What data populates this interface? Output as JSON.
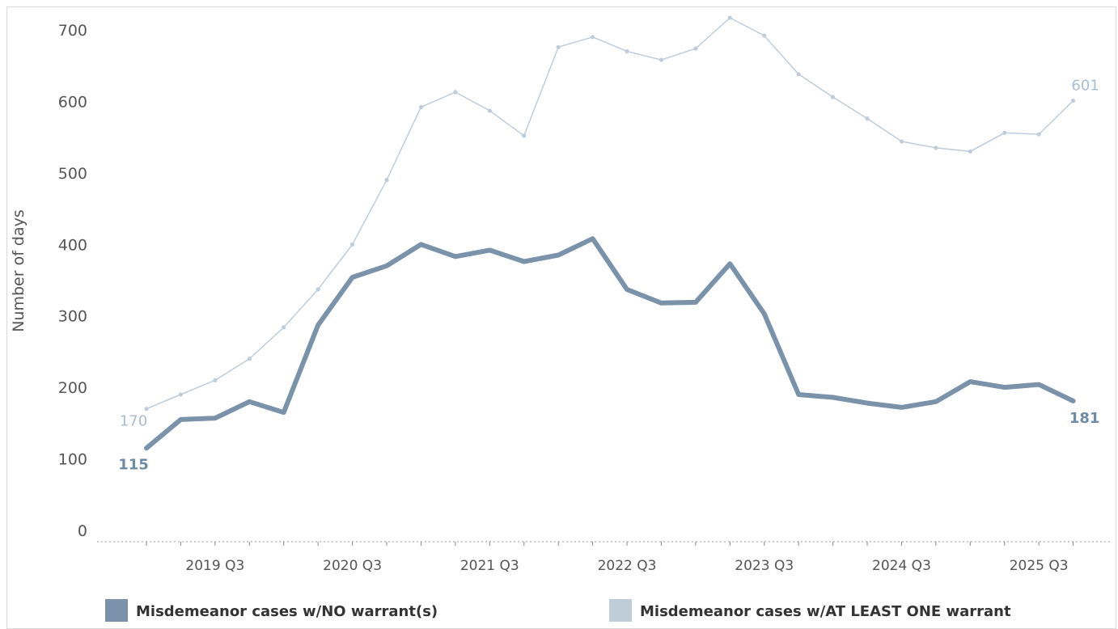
{
  "chart_data": {
    "type": "line",
    "ylabel": "Number of days",
    "ylim": [
      0,
      700
    ],
    "yticks": [
      "0",
      "100",
      "200",
      "300",
      "400",
      "500",
      "600",
      "700"
    ],
    "xtick_labels": [
      "2019 Q3",
      "2020 Q3",
      "2021 Q3",
      "2022 Q3",
      "2023 Q3",
      "2024 Q3",
      "2025 Q3"
    ],
    "x": [
      "2019 Q1",
      "2019 Q2",
      "2019 Q3",
      "2019 Q4",
      "2020 Q1",
      "2020 Q2",
      "2020 Q3",
      "2020 Q4",
      "2021 Q1",
      "2021 Q2",
      "2021 Q3",
      "2021 Q4",
      "2022 Q1",
      "2022 Q2",
      "2022 Q3",
      "2022 Q4",
      "2023 Q1",
      "2023 Q2",
      "2023 Q3",
      "2023 Q4",
      "2024 Q1",
      "2024 Q2",
      "2024 Q3",
      "2024 Q4",
      "2025 Q1",
      "2025 Q2",
      "2025 Q3",
      "2025 Q4"
    ],
    "grid": false,
    "legend_position": "bottom",
    "series": [
      {
        "name": "Misdemeanor cases w/NO warrant(s)",
        "color": "#7a93ab",
        "values": [
          115,
          155,
          157,
          180,
          165,
          287,
          354,
          370,
          400,
          383,
          392,
          376,
          385,
          408,
          337,
          318,
          319,
          373,
          303,
          190,
          186,
          178,
          172,
          180,
          208,
          200,
          204,
          181
        ],
        "end_labels": {
          "first": "115",
          "last": "181"
        }
      },
      {
        "name": "Misdemeanor cases w/AT LEAST ONE warrant",
        "color": "#bfcddb",
        "values": [
          170,
          190,
          210,
          240,
          284,
          337,
          400,
          490,
          592,
          613,
          587,
          552,
          676,
          690,
          670,
          658,
          674,
          717,
          692,
          638,
          606,
          576,
          544,
          535,
          530,
          556,
          554,
          601
        ],
        "end_labels": {
          "first": "170",
          "last": "601"
        }
      }
    ]
  }
}
